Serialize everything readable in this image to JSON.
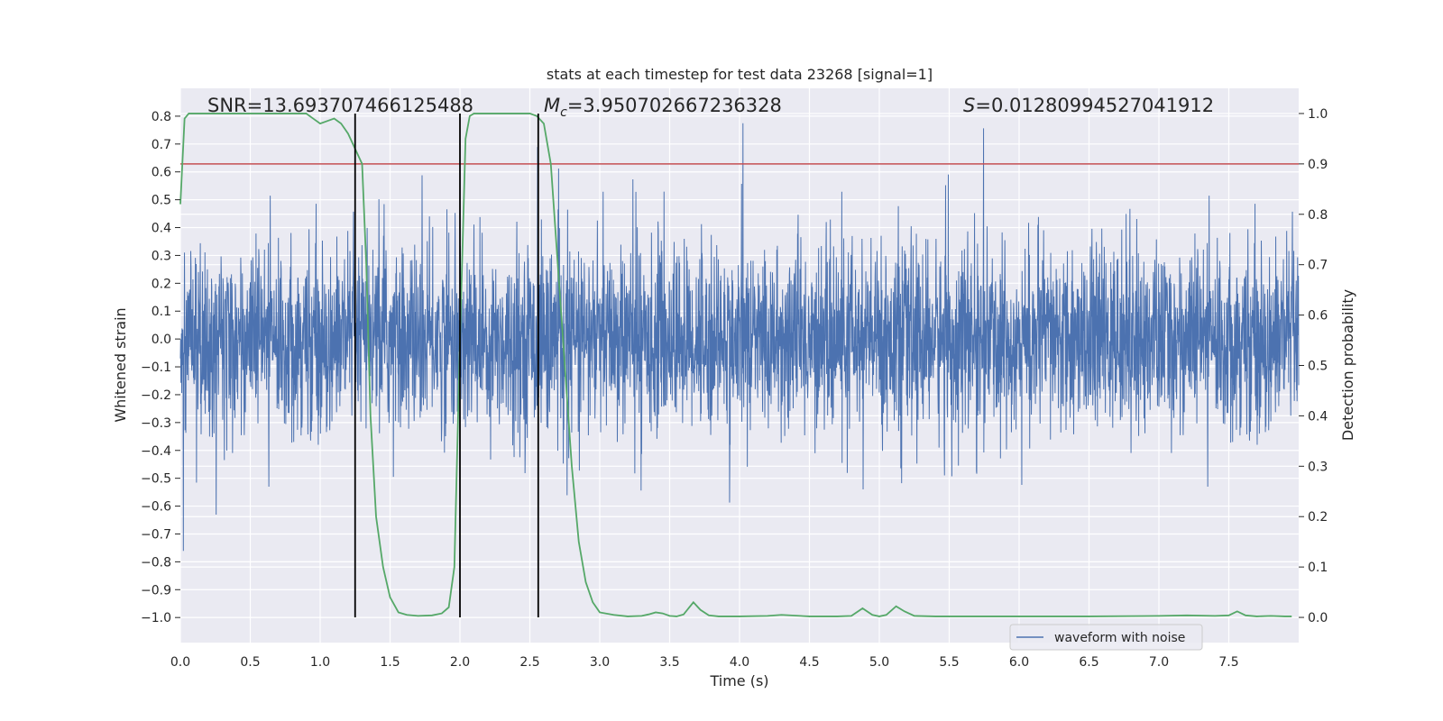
{
  "chart_data": {
    "type": "line",
    "title": "stats at each timestep for test data 23268 [signal=1]",
    "xlabel": "Time (s)",
    "ylabel": "Whitened strain",
    "y2label": "Detection probability",
    "xlim": [
      0,
      8
    ],
    "ylim": [
      -1.09,
      0.9
    ],
    "y2lim": [
      -0.05,
      1.05
    ],
    "xticks": [
      0.0,
      0.5,
      1.0,
      1.5,
      2.0,
      2.5,
      3.0,
      3.5,
      4.0,
      4.5,
      5.0,
      5.5,
      6.0,
      6.5,
      7.0,
      7.5
    ],
    "xtick_labels": [
      "0.0",
      "0.5",
      "1.0",
      "1.5",
      "2.0",
      "2.5",
      "3.0",
      "3.5",
      "4.0",
      "4.5",
      "5.0",
      "5.5",
      "6.0",
      "6.5",
      "7.0",
      "7.5"
    ],
    "yticks": [
      0.8,
      0.7,
      0.6,
      0.5,
      0.4,
      0.3,
      0.2,
      0.1,
      0.0,
      -0.1,
      -0.2,
      -0.3,
      -0.4,
      -0.5,
      -0.6,
      -0.7,
      -0.8,
      -0.9,
      -1.0
    ],
    "ytick_labels": [
      "0.8",
      "0.7",
      "0.6",
      "0.5",
      "0.4",
      "0.3",
      "0.2",
      "0.1",
      "0.0",
      "−0.1",
      "−0.2",
      "−0.3",
      "−0.4",
      "−0.5",
      "−0.6",
      "−0.7",
      "−0.8",
      "−0.9",
      "−1.0"
    ],
    "y2ticks": [
      1.0,
      0.9,
      0.8,
      0.7,
      0.6,
      0.5,
      0.4,
      0.3,
      0.2,
      0.1,
      0.0
    ],
    "y2tick_labels": [
      "1.0",
      "0.9",
      "0.8",
      "0.7",
      "0.6",
      "0.5",
      "0.4",
      "0.3",
      "0.2",
      "0.1",
      "0.0"
    ],
    "grid": true,
    "legend_placement": "lower-right",
    "annotations": {
      "snr": "SNR=13.693707466125488",
      "mc_symbol": "M",
      "mc_sub": "c",
      "mc_value": "=3.950702667236328",
      "s_symbol": "S",
      "s_value": "=0.01280994527041912"
    },
    "series": [
      {
        "name": "waveform with noise",
        "axis": "left",
        "color": "#4c72b0",
        "envelope_note": "dense noisy waveform sampled over 0–8 s",
        "peak_positive": 0.78,
        "peak_negative": -1.0
      },
      {
        "axis": "right",
        "color": "#55a868",
        "x": [
          0.0,
          0.03,
          0.06,
          0.1,
          0.2,
          0.3,
          0.4,
          0.5,
          0.6,
          0.7,
          0.8,
          0.9,
          0.95,
          1.0,
          1.05,
          1.1,
          1.15,
          1.2,
          1.25,
          1.3,
          1.33,
          1.36,
          1.4,
          1.45,
          1.5,
          1.56,
          1.62,
          1.7,
          1.8,
          1.87,
          1.92,
          1.96,
          2.0,
          2.04,
          2.07,
          2.1,
          2.15,
          2.2,
          2.3,
          2.4,
          2.5,
          2.55,
          2.6,
          2.65,
          2.7,
          2.75,
          2.8,
          2.85,
          2.9,
          2.95,
          3.0,
          3.1,
          3.2,
          3.3,
          3.35,
          3.4,
          3.45,
          3.5,
          3.55,
          3.6,
          3.67,
          3.72,
          3.78,
          3.85,
          4.0,
          4.2,
          4.3,
          4.5,
          4.7,
          4.8,
          4.88,
          4.95,
          5.0,
          5.05,
          5.12,
          5.18,
          5.25,
          5.4,
          5.6,
          5.8,
          6.0,
          6.5,
          7.0,
          7.2,
          7.4,
          7.5,
          7.56,
          7.62,
          7.7,
          7.8,
          7.9,
          7.95
        ],
        "y": [
          0.82,
          0.99,
          1.0,
          1.0,
          1.0,
          1.0,
          1.0,
          1.0,
          1.0,
          1.0,
          1.0,
          1.0,
          0.99,
          0.98,
          0.985,
          0.99,
          0.98,
          0.96,
          0.93,
          0.9,
          0.7,
          0.4,
          0.2,
          0.1,
          0.04,
          0.01,
          0.005,
          0.003,
          0.004,
          0.008,
          0.02,
          0.1,
          0.55,
          0.95,
          0.995,
          1.0,
          1.0,
          1.0,
          1.0,
          1.0,
          1.0,
          0.995,
          0.98,
          0.9,
          0.7,
          0.5,
          0.3,
          0.15,
          0.07,
          0.03,
          0.01,
          0.005,
          0.002,
          0.003,
          0.006,
          0.01,
          0.008,
          0.003,
          0.002,
          0.006,
          0.03,
          0.015,
          0.004,
          0.002,
          0.002,
          0.003,
          0.005,
          0.002,
          0.002,
          0.003,
          0.018,
          0.005,
          0.002,
          0.005,
          0.022,
          0.012,
          0.003,
          0.002,
          0.002,
          0.002,
          0.002,
          0.002,
          0.003,
          0.004,
          0.003,
          0.004,
          0.012,
          0.004,
          0.002,
          0.003,
          0.002,
          0.002
        ]
      }
    ],
    "threshold": {
      "axis": "right",
      "value": 0.9,
      "color": "#c44e52"
    },
    "vlines": {
      "x": [
        1.25,
        2.0,
        2.56
      ],
      "color": "#000000"
    }
  }
}
